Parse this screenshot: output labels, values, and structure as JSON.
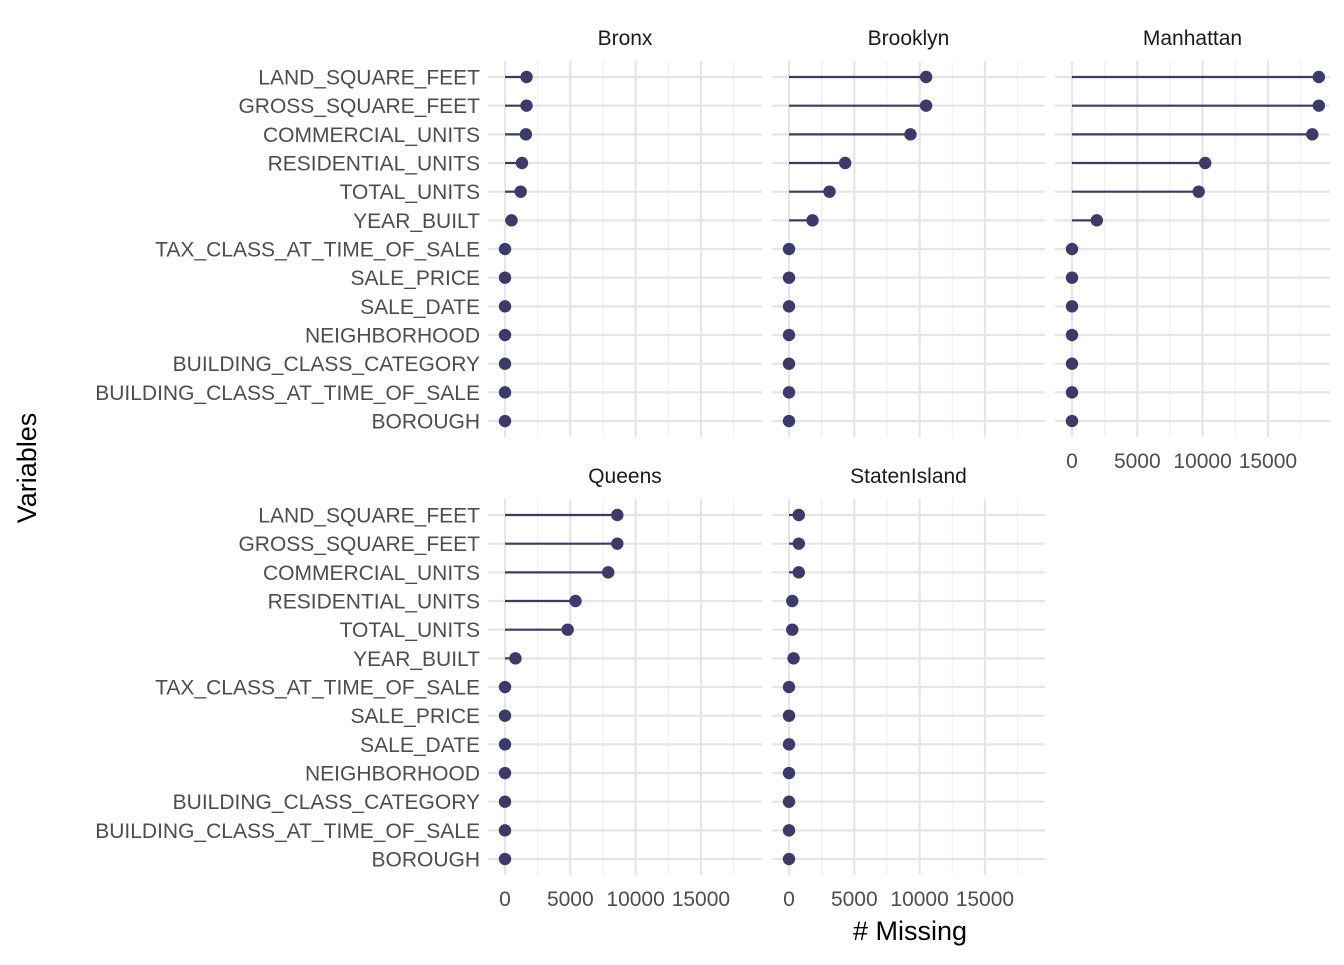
{
  "chart_data": {
    "type": "lollipop",
    "xlabel": "# Missing",
    "ylabel": "Variables",
    "xlim": [
      0,
      19000
    ],
    "x_ticks": [
      0,
      5000,
      10000,
      15000
    ],
    "x_tick_labels": [
      "0",
      "5000",
      "10000",
      "15000"
    ],
    "grid": true,
    "color": "#3b3b6b",
    "variables": [
      "LAND_SQUARE_FEET",
      "GROSS_SQUARE_FEET",
      "COMMERCIAL_UNITS",
      "RESIDENTIAL_UNITS",
      "TOTAL_UNITS",
      "YEAR_BUILT",
      "TAX_CLASS_AT_TIME_OF_SALE",
      "SALE_PRICE",
      "SALE_DATE",
      "NEIGHBORHOOD",
      "BUILDING_CLASS_CATEGORY",
      "BUILDING_CLASS_AT_TIME_OF_SALE",
      "BOROUGH"
    ],
    "panels": [
      {
        "name": "Bronx",
        "values": [
          1650,
          1650,
          1600,
          1300,
          1200,
          500,
          0,
          0,
          0,
          0,
          0,
          0,
          0
        ]
      },
      {
        "name": "Brooklyn",
        "values": [
          10500,
          10500,
          9300,
          4300,
          3100,
          1800,
          0,
          0,
          0,
          0,
          0,
          0,
          0
        ]
      },
      {
        "name": "Manhattan",
        "values": [
          18900,
          18900,
          18400,
          10200,
          9700,
          1900,
          0,
          0,
          0,
          0,
          0,
          0,
          0
        ]
      },
      {
        "name": "Queens",
        "values": [
          8600,
          8600,
          7900,
          5400,
          4800,
          800,
          0,
          0,
          0,
          0,
          0,
          0,
          0
        ]
      },
      {
        "name": "StatenIsland",
        "values": [
          750,
          750,
          750,
          250,
          250,
          350,
          0,
          0,
          0,
          0,
          0,
          0,
          0
        ]
      }
    ]
  }
}
